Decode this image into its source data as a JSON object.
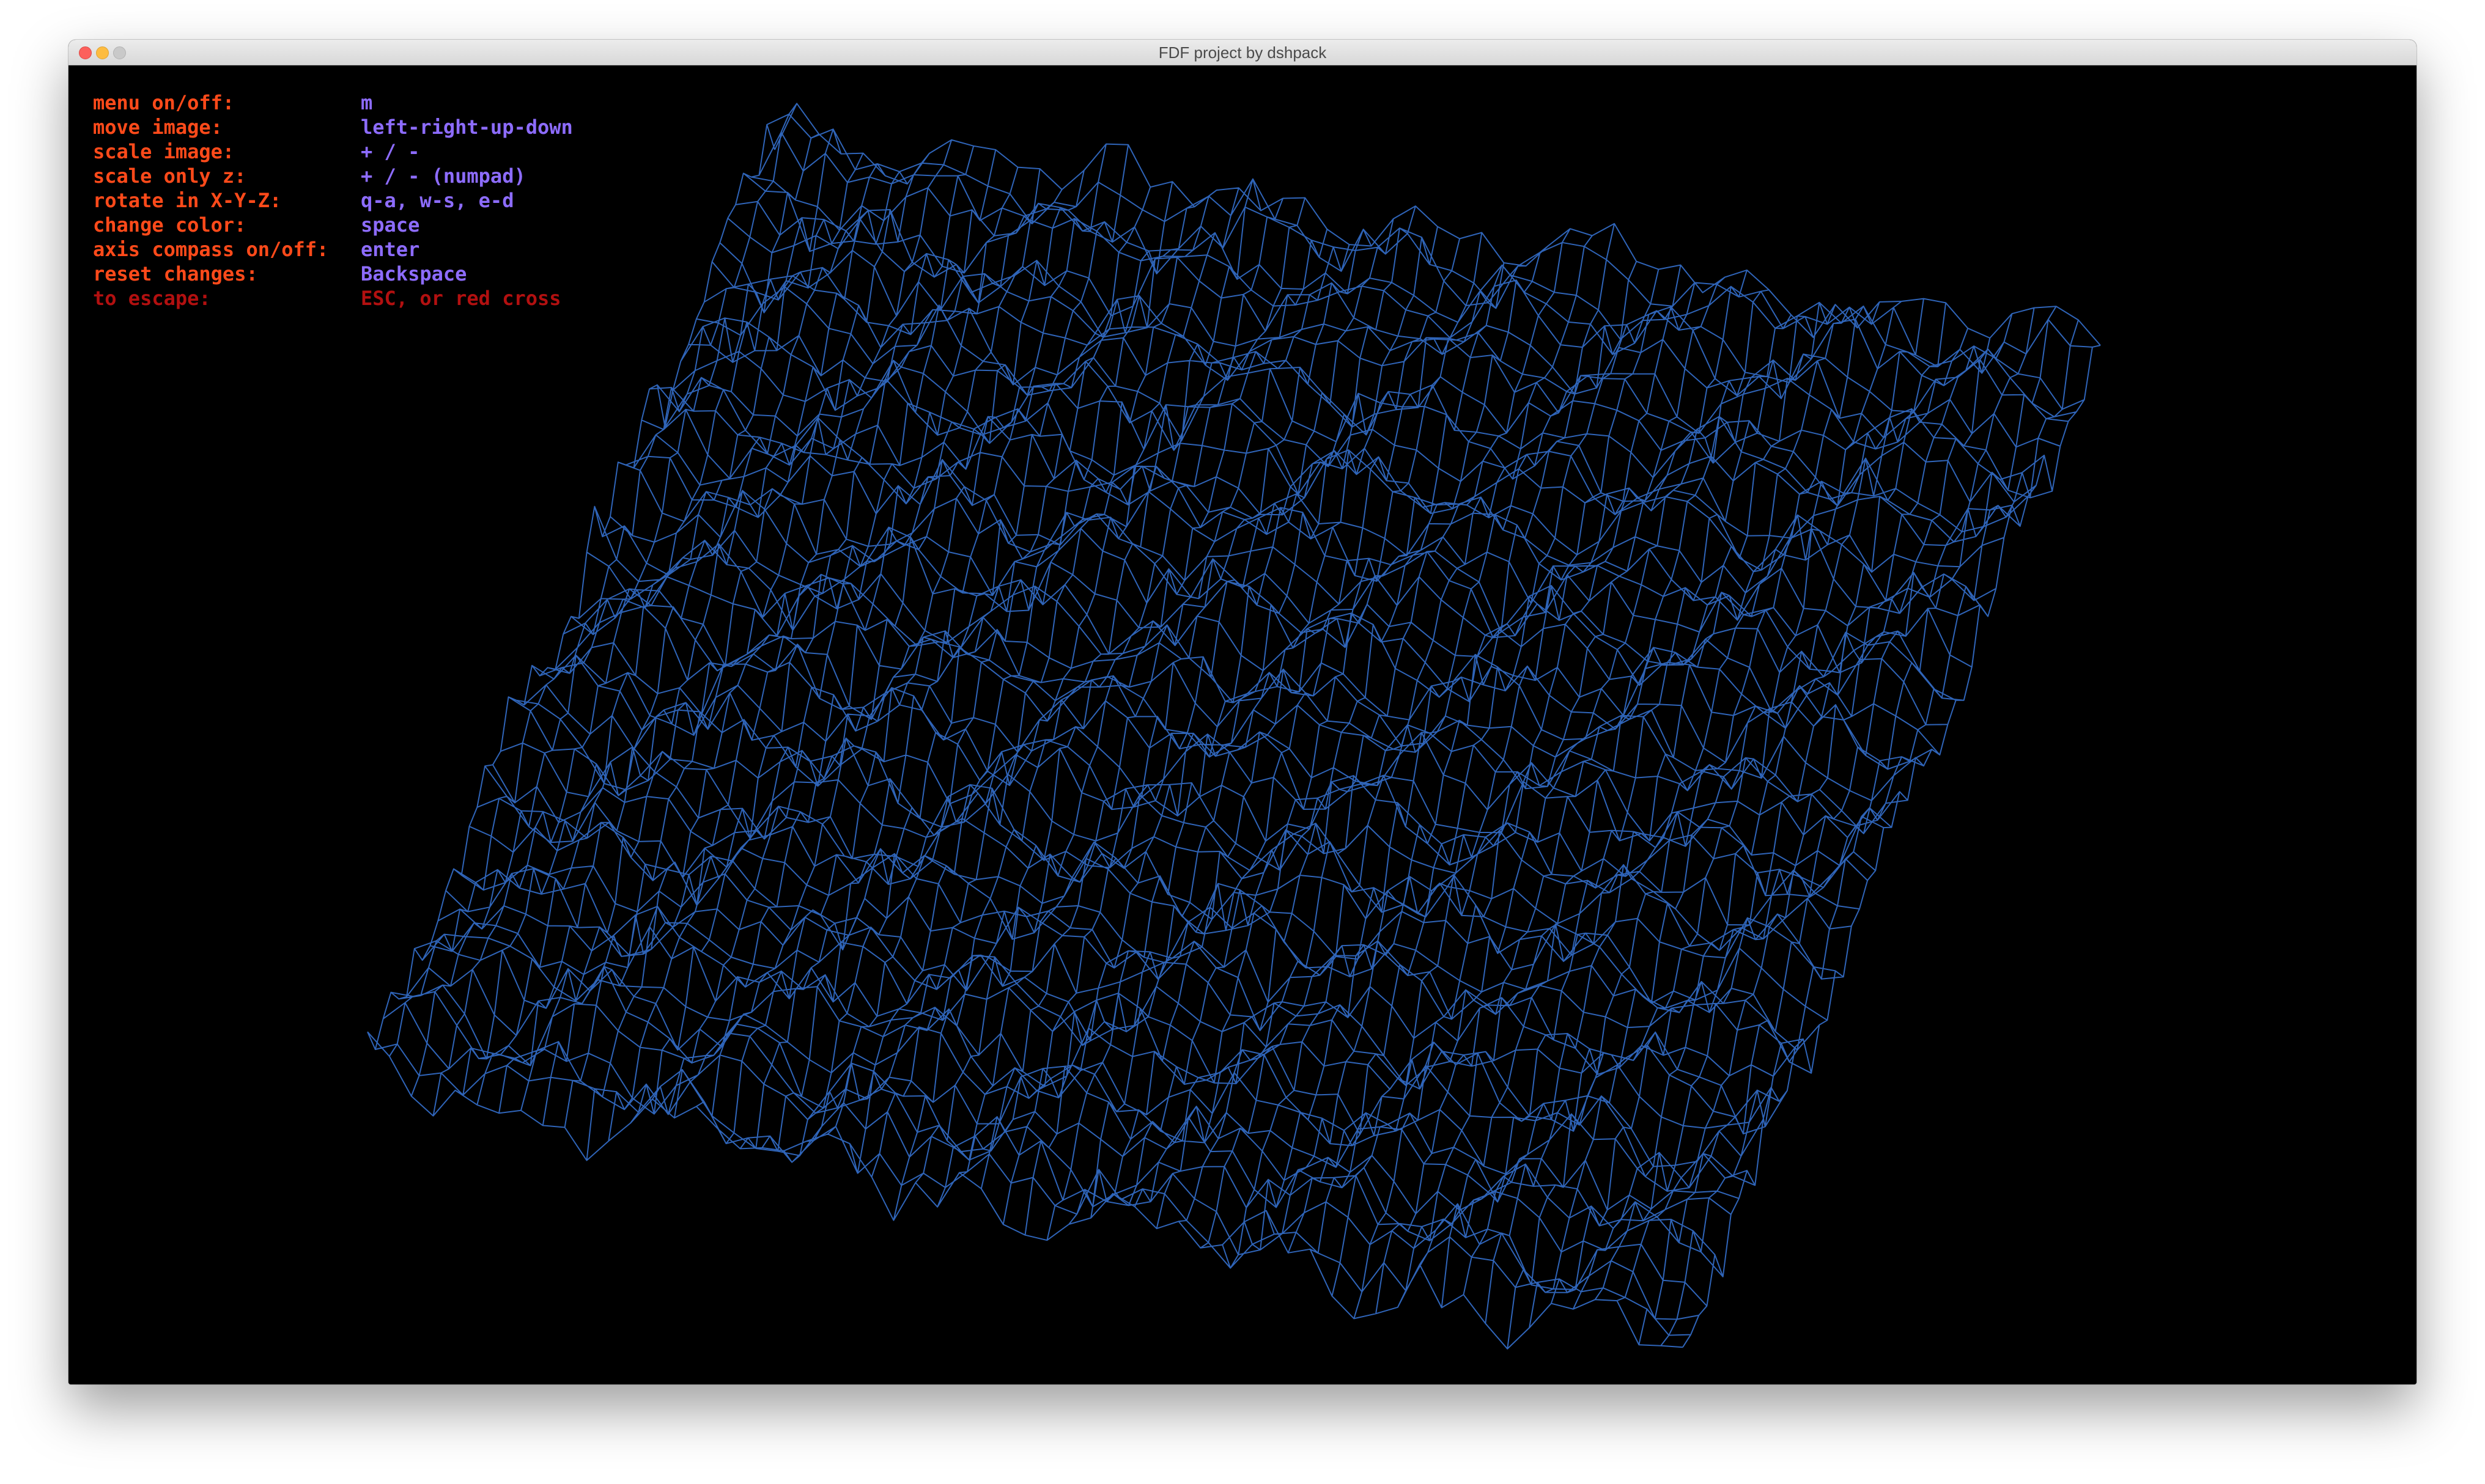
{
  "window": {
    "title": "FDF project by dshpack"
  },
  "menu": {
    "rows": [
      {
        "label": "menu on/off:",
        "key": "m"
      },
      {
        "label": "move image:",
        "key": "left-right-up-down"
      },
      {
        "label": "scale image:",
        "key": "+ / -"
      },
      {
        "label": "scale only z:",
        "key": "+ / - (numpad)"
      },
      {
        "label": "rotate in X-Y-Z:",
        "key": "q-a, w-s, e-d"
      },
      {
        "label": "change color:",
        "key": "space"
      },
      {
        "label": "axis compass on/off:",
        "key": "enter"
      },
      {
        "label": "reset changes:",
        "key": "Backspace"
      },
      {
        "label": "to escape:",
        "key": "ESC, or red cross"
      }
    ]
  },
  "colors": {
    "label": "#ff4a1a",
    "key": "#8d6cff",
    "escape": "#b21010",
    "wire": "#2f64b8",
    "background": "#000000"
  },
  "icons": [
    "close-button-icon",
    "minimize-button-icon",
    "zoom-button-icon"
  ]
}
